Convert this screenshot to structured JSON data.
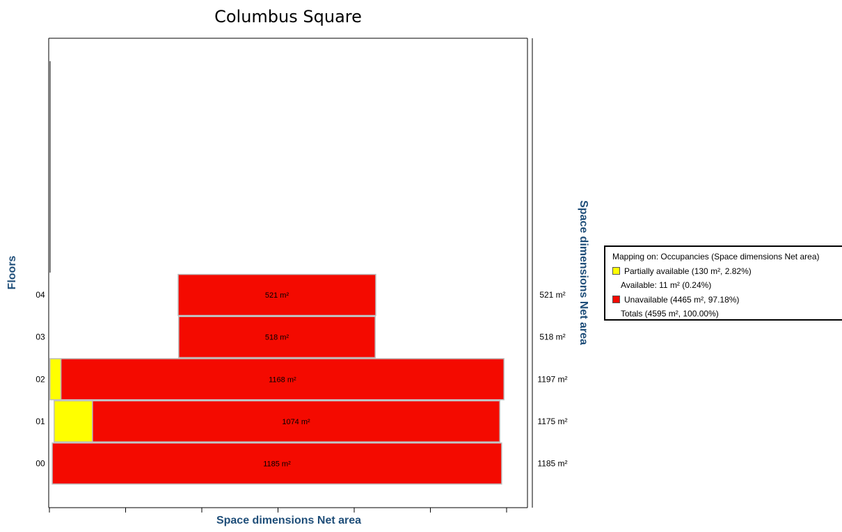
{
  "chart_data": {
    "type": "bar",
    "title": "Columbus Square",
    "xlabel": "Space dimensions Net area",
    "ylabel": "Floors",
    "ylabel_right": "Space dimensions Net area",
    "orientation": "horizontal-stacked-centered",
    "categories": [
      "00",
      "01",
      "02",
      "03",
      "04"
    ],
    "series": [
      {
        "name": "Partially available",
        "color": "#ffff00",
        "values": [
          0,
          101,
          29,
          0,
          0
        ]
      },
      {
        "name": "Unavailable",
        "color": "#f40a00",
        "values": [
          1185,
          1074,
          1168,
          518,
          521
        ]
      }
    ],
    "bar_labels": [
      "1185 m²",
      "1074 m²",
      "1168 m²",
      "518 m²",
      "521 m²"
    ],
    "right_totals": [
      "1185 m²",
      "1175 m²",
      "1197 m²",
      "518 m²",
      "521 m²"
    ],
    "xlim": [
      0,
      1200
    ],
    "grid": false,
    "legend_placement": "right"
  },
  "legend": {
    "header": "Mapping on: Occupancies (Space dimensions Net area)",
    "items": [
      {
        "label": "Partially available (130 m², 2.82%)",
        "color": "#ffff00",
        "swatch": true
      },
      {
        "label": "Available: 11 m² (0.24%)",
        "color": "",
        "swatch": false
      },
      {
        "label": "Unavailable (4465 m², 97.18%)",
        "color": "#f40a00",
        "swatch": true
      },
      {
        "label": "Totals (4595 m², 100.00%)",
        "color": "",
        "swatch": false
      }
    ]
  }
}
